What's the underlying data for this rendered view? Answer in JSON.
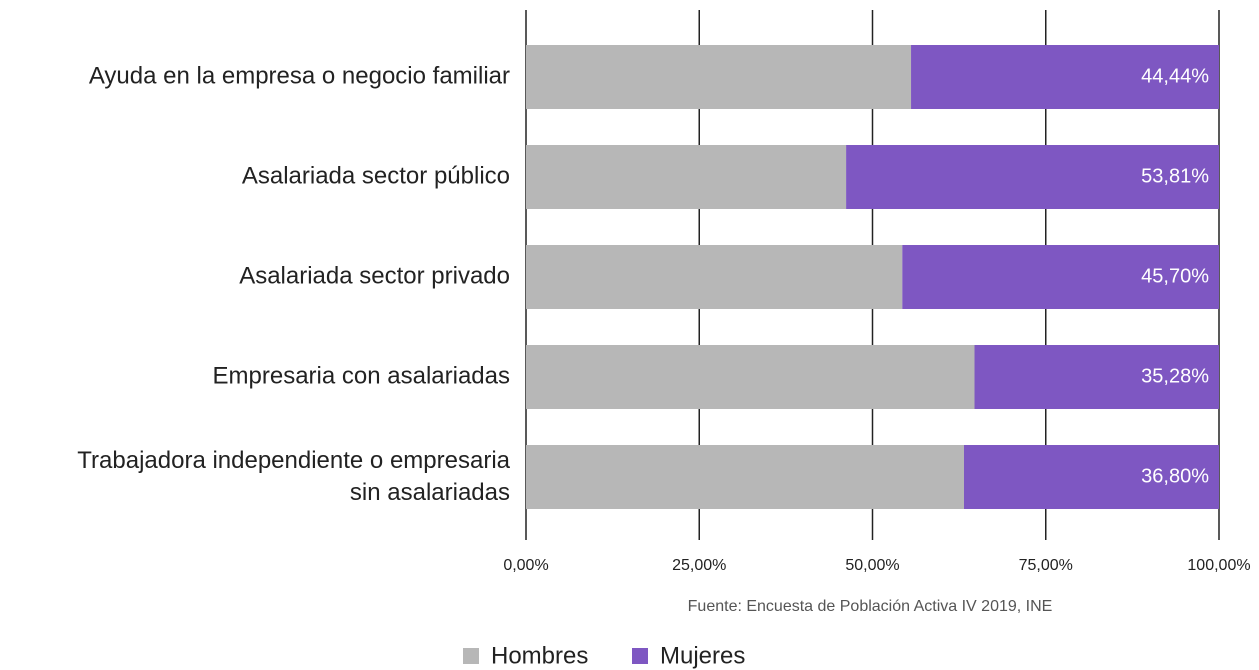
{
  "chart_data": {
    "type": "bar",
    "orientation": "horizontal",
    "stacked": true,
    "categories": [
      "Ayuda en la empresa o negocio familiar",
      "Asalariada sector público",
      "Asalariada sector privado",
      "Empresaria con asalariadas",
      "Trabajadora independiente o empresaria sin asalariadas"
    ],
    "series": [
      {
        "name": "Hombres",
        "color": "#b7b7b7",
        "values": [
          55.56,
          46.19,
          54.3,
          64.72,
          63.2
        ]
      },
      {
        "name": "Mujeres",
        "color": "#7e57c2",
        "values": [
          44.44,
          53.81,
          45.7,
          35.28,
          36.8
        ],
        "value_labels": [
          "44,44%",
          "53,81%",
          "45,70%",
          "35,28%",
          "36,80%"
        ]
      }
    ],
    "xlim": [
      0,
      100
    ],
    "xticks": [
      {
        "value": 0,
        "label": "0,00%"
      },
      {
        "value": 25,
        "label": "25,00%"
      },
      {
        "value": 50,
        "label": "50,00%"
      },
      {
        "value": 75,
        "label": "75,00%"
      },
      {
        "value": 100,
        "label": "100,00%"
      }
    ],
    "grid": true,
    "legend": "bottom",
    "source": "Fuente: Encuesta de Población Activa IV 2019, INE"
  }
}
